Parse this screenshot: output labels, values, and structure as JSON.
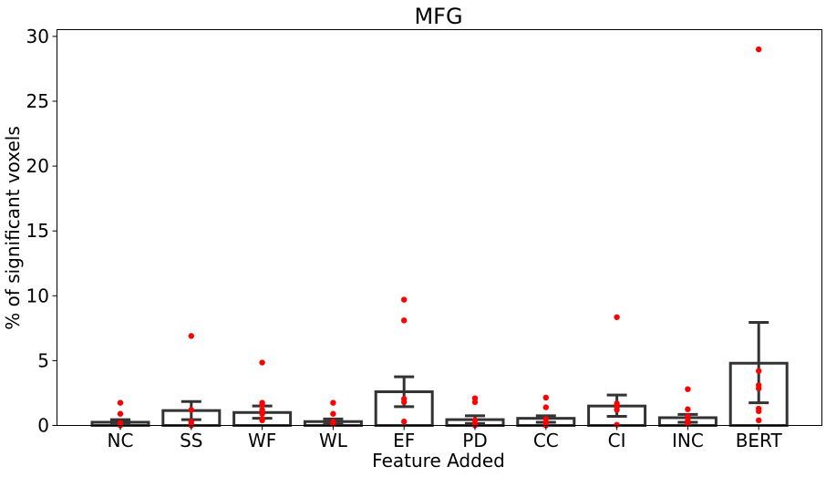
{
  "chart_data": {
    "type": "bar",
    "title": "MFG",
    "xlabel": "Feature Added",
    "ylabel": "% of significant voxels",
    "ylim": [
      0,
      30.5
    ],
    "yticks": [
      0,
      5,
      10,
      15,
      20,
      25,
      30
    ],
    "categories": [
      "NC",
      "SS",
      "WF",
      "WL",
      "EF",
      "PD",
      "CC",
      "CI",
      "INC",
      "BERT"
    ],
    "values": [
      0.25,
      1.15,
      1.0,
      0.3,
      2.6,
      0.45,
      0.55,
      1.5,
      0.6,
      4.8
    ],
    "error_low": [
      0.05,
      0.45,
      0.55,
      0.1,
      1.45,
      0.15,
      0.25,
      0.7,
      0.25,
      1.75
    ],
    "error_high": [
      0.45,
      1.85,
      1.5,
      0.5,
      3.75,
      0.75,
      0.75,
      2.35,
      0.85,
      7.95
    ],
    "points": [
      [
        1.75,
        0.9,
        0.2,
        0.05,
        0.0
      ],
      [
        6.9,
        1.2,
        0.3,
        0.1,
        0.0
      ],
      [
        4.85,
        1.75,
        1.6,
        1.2,
        0.9,
        0.5,
        0.4
      ],
      [
        1.75,
        0.9,
        0.3,
        0.1
      ],
      [
        9.7,
        8.1,
        2.05,
        1.8,
        0.3
      ],
      [
        2.1,
        1.8,
        0.4,
        0.1,
        0.0
      ],
      [
        2.15,
        1.4,
        0.5,
        0.2,
        0.0
      ],
      [
        8.35,
        1.7,
        1.45,
        1.2,
        0.05
      ],
      [
        2.8,
        1.25,
        0.7,
        0.35,
        0.1
      ],
      [
        29.0,
        4.2,
        3.1,
        2.85,
        1.3,
        1.1,
        0.4
      ]
    ],
    "bar_fill": "#ffffff",
    "bar_edge": "#333333",
    "point_color": "#ff0000",
    "grid": false,
    "legend": "none"
  }
}
